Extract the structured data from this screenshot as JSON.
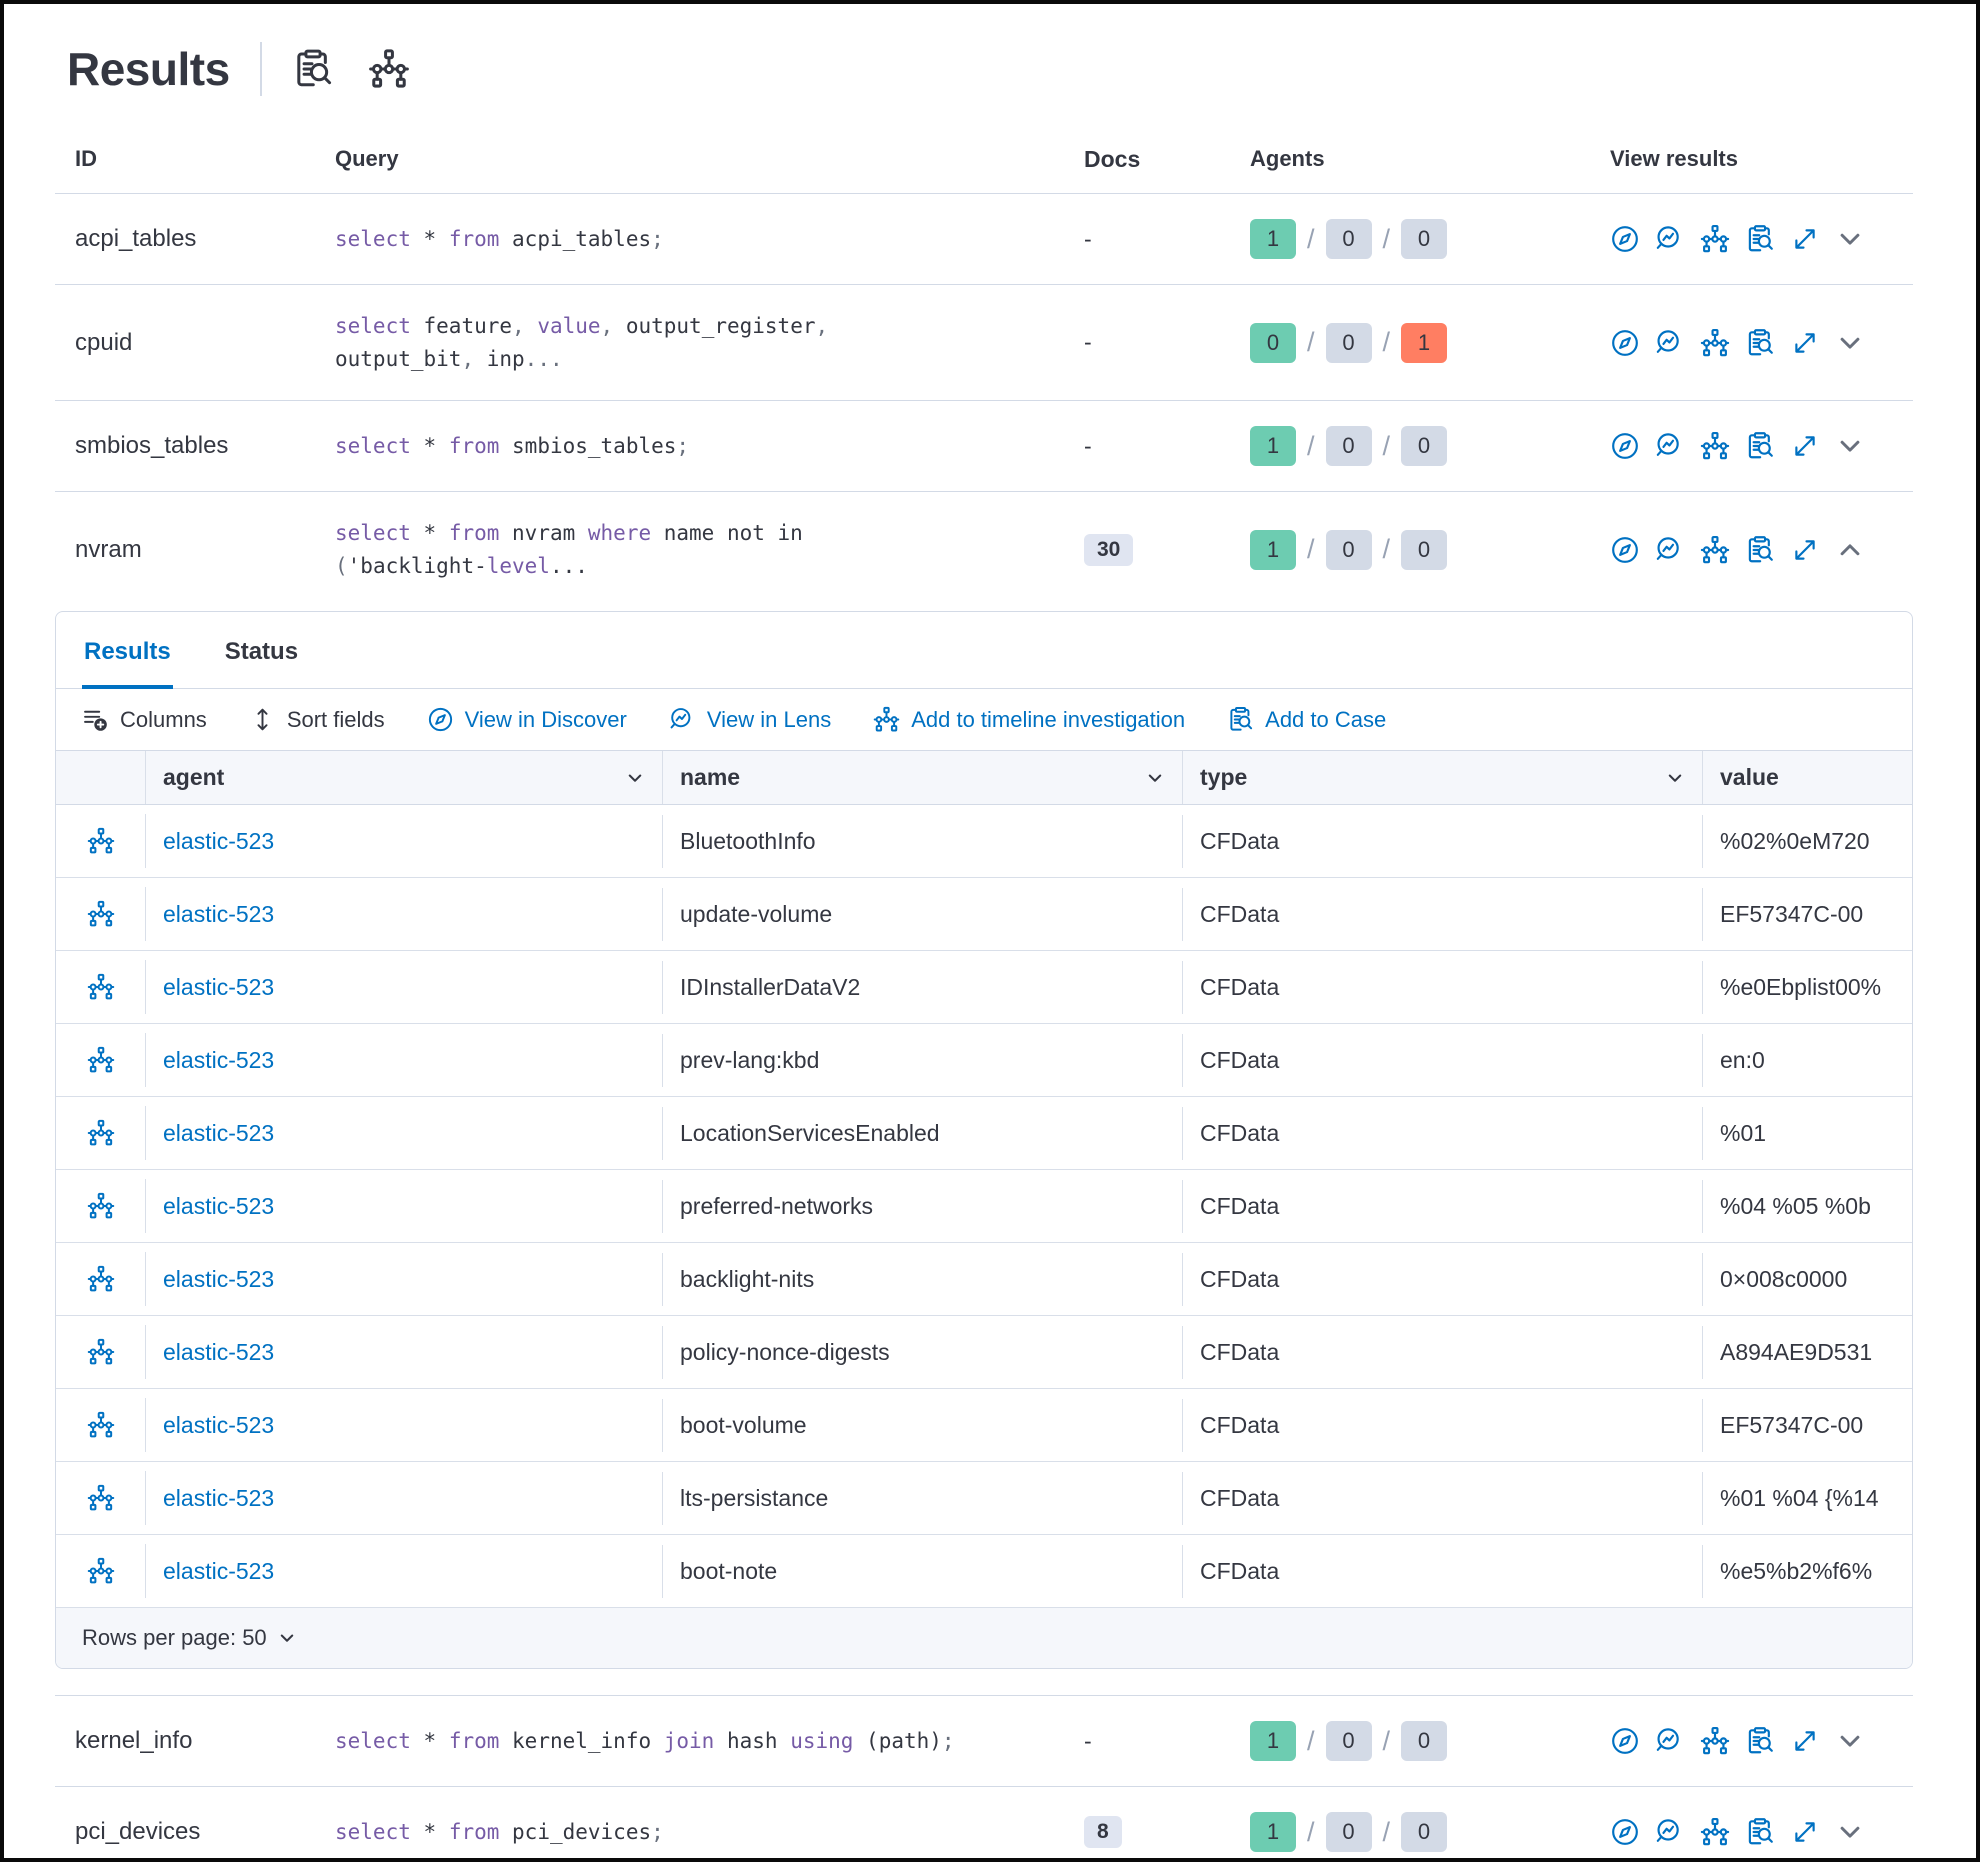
{
  "app": {
    "title": "Results"
  },
  "colors": {
    "primary_blue": "#0071C2",
    "keyword_purple": "#765BA6",
    "badge_green": "#6DCCB1",
    "badge_gray": "#D3DAE6",
    "badge_red": "#FF7E62",
    "border": "#D3DAE6"
  },
  "header_icons": [
    {
      "name": "inspect-icon"
    },
    {
      "name": "timeline-icon"
    }
  ],
  "queries_table": {
    "headers": {
      "id": "ID",
      "query": "Query",
      "docs": "Docs",
      "agents": "Agents",
      "view": "View results"
    },
    "view_icon_names": [
      "discover-icon",
      "lens-icon",
      "timeline-icon",
      "inspect-icon",
      "expand-icon"
    ],
    "rows": [
      {
        "id": "acpi_tables",
        "docs": "-",
        "docs_is_badge": false,
        "expanded": false,
        "query": [
          [
            [
              "k",
              "select "
            ],
            [
              "i",
              "* "
            ],
            [
              "k",
              "from "
            ],
            [
              "i",
              "acpi_tables"
            ],
            [
              "p",
              ";"
            ]
          ]
        ],
        "agents": [
          {
            "v": "1",
            "c": "green"
          },
          {
            "v": "0",
            "c": "gray"
          },
          {
            "v": "0",
            "c": "gray"
          }
        ]
      },
      {
        "id": "cpuid",
        "docs": "-",
        "docs_is_badge": false,
        "expanded": false,
        "query": [
          [
            [
              "k",
              "select "
            ],
            [
              "i",
              "feature"
            ],
            [
              "p",
              ", "
            ],
            [
              "k",
              "value"
            ],
            [
              "p",
              ", "
            ],
            [
              "i",
              "output_register"
            ],
            [
              "p",
              ","
            ]
          ],
          [
            [
              "i",
              "output_bit"
            ],
            [
              "p",
              ", "
            ],
            [
              "i",
              "inp"
            ],
            [
              "p",
              "..."
            ]
          ]
        ],
        "agents": [
          {
            "v": "0",
            "c": "green"
          },
          {
            "v": "0",
            "c": "gray"
          },
          {
            "v": "1",
            "c": "red"
          }
        ]
      },
      {
        "id": "smbios_tables",
        "docs": "-",
        "docs_is_badge": false,
        "expanded": false,
        "query": [
          [
            [
              "k",
              "select "
            ],
            [
              "i",
              "* "
            ],
            [
              "k",
              "from "
            ],
            [
              "i",
              "smbios_tables"
            ],
            [
              "p",
              ";"
            ]
          ]
        ],
        "agents": [
          {
            "v": "1",
            "c": "green"
          },
          {
            "v": "0",
            "c": "gray"
          },
          {
            "v": "0",
            "c": "gray"
          }
        ]
      },
      {
        "id": "nvram",
        "docs": "30",
        "docs_is_badge": true,
        "expanded": true,
        "query": [
          [
            [
              "k",
              "select "
            ],
            [
              "i",
              "* "
            ],
            [
              "k",
              "from "
            ],
            [
              "i",
              "nvram "
            ],
            [
              "k",
              "where "
            ],
            [
              "i",
              "name not in"
            ]
          ],
          [
            [
              "p",
              "("
            ],
            [
              "i",
              "'backlight-"
            ],
            [
              "k",
              "level"
            ],
            [
              "i",
              "..."
            ]
          ]
        ],
        "agents": [
          {
            "v": "1",
            "c": "green"
          },
          {
            "v": "0",
            "c": "gray"
          },
          {
            "v": "0",
            "c": "gray"
          }
        ]
      },
      {
        "id": "kernel_info",
        "docs": "-",
        "docs_is_badge": false,
        "expanded": false,
        "query": [
          [
            [
              "k",
              "select "
            ],
            [
              "i",
              "* "
            ],
            [
              "k",
              "from "
            ],
            [
              "i",
              "kernel_info "
            ],
            [
              "k",
              "join "
            ],
            [
              "i",
              "hash "
            ],
            [
              "k",
              "using "
            ],
            [
              "i",
              "(path)"
            ],
            [
              "p",
              ";"
            ]
          ]
        ],
        "agents": [
          {
            "v": "1",
            "c": "green"
          },
          {
            "v": "0",
            "c": "gray"
          },
          {
            "v": "0",
            "c": "gray"
          }
        ]
      },
      {
        "id": "pci_devices",
        "docs": "8",
        "docs_is_badge": true,
        "expanded": false,
        "query": [
          [
            [
              "k",
              "select "
            ],
            [
              "i",
              "* "
            ],
            [
              "k",
              "from "
            ],
            [
              "i",
              "pci_devices"
            ],
            [
              "p",
              ";"
            ]
          ]
        ],
        "agents": [
          {
            "v": "1",
            "c": "green"
          },
          {
            "v": "0",
            "c": "gray"
          },
          {
            "v": "0",
            "c": "gray"
          }
        ]
      }
    ]
  },
  "panel": {
    "tabs": [
      {
        "label": "Results",
        "active": true
      },
      {
        "label": "Status",
        "active": false
      }
    ],
    "toolbar": [
      {
        "label": "Columns",
        "icon": "columns",
        "style": "dark"
      },
      {
        "label": "Sort fields",
        "icon": "sort",
        "style": "dark"
      },
      {
        "label": "View in Discover",
        "icon": "discover",
        "style": "blue"
      },
      {
        "label": "View in Lens",
        "icon": "lens",
        "style": "blue"
      },
      {
        "label": "Add to timeline investigation",
        "icon": "timeline",
        "style": "blue"
      },
      {
        "label": "Add to Case",
        "icon": "inspect",
        "style": "blue"
      }
    ],
    "grid": {
      "columns": [
        {
          "label": "agent",
          "sortable": true
        },
        {
          "label": "name",
          "sortable": true
        },
        {
          "label": "type",
          "sortable": true
        },
        {
          "label": "value",
          "sortable": false
        }
      ],
      "rows": [
        {
          "agent": "elastic-523",
          "name": "BluetoothInfo",
          "type": "CFData",
          "value": "%02%0eM720"
        },
        {
          "agent": "elastic-523",
          "name": "update-volume",
          "type": "CFData",
          "value": "EF57347C-00"
        },
        {
          "agent": "elastic-523",
          "name": "IDInstallerDataV2",
          "type": "CFData",
          "value": "%e0Ebplist00%"
        },
        {
          "agent": "elastic-523",
          "name": "prev-lang:kbd",
          "type": "CFData",
          "value": "en:0"
        },
        {
          "agent": "elastic-523",
          "name": "LocationServicesEnabled",
          "type": "CFData",
          "value": "%01"
        },
        {
          "agent": "elastic-523",
          "name": "preferred-networks",
          "type": "CFData",
          "value": "%04 %05 %0b"
        },
        {
          "agent": "elastic-523",
          "name": "backlight-nits",
          "type": "CFData",
          "value": "0×008c0000"
        },
        {
          "agent": "elastic-523",
          "name": "policy-nonce-digests",
          "type": "CFData",
          "value": "A894AE9D531"
        },
        {
          "agent": "elastic-523",
          "name": "boot-volume",
          "type": "CFData",
          "value": "EF57347C-00"
        },
        {
          "agent": "elastic-523",
          "name": "lts-persistance",
          "type": "CFData",
          "value": "%01 %04 {%14"
        },
        {
          "agent": "elastic-523",
          "name": "boot-note",
          "type": "CFData",
          "value": "%e5%b2%f6%"
        }
      ]
    },
    "footer": {
      "rows_per_page": "Rows per page: 50"
    }
  }
}
